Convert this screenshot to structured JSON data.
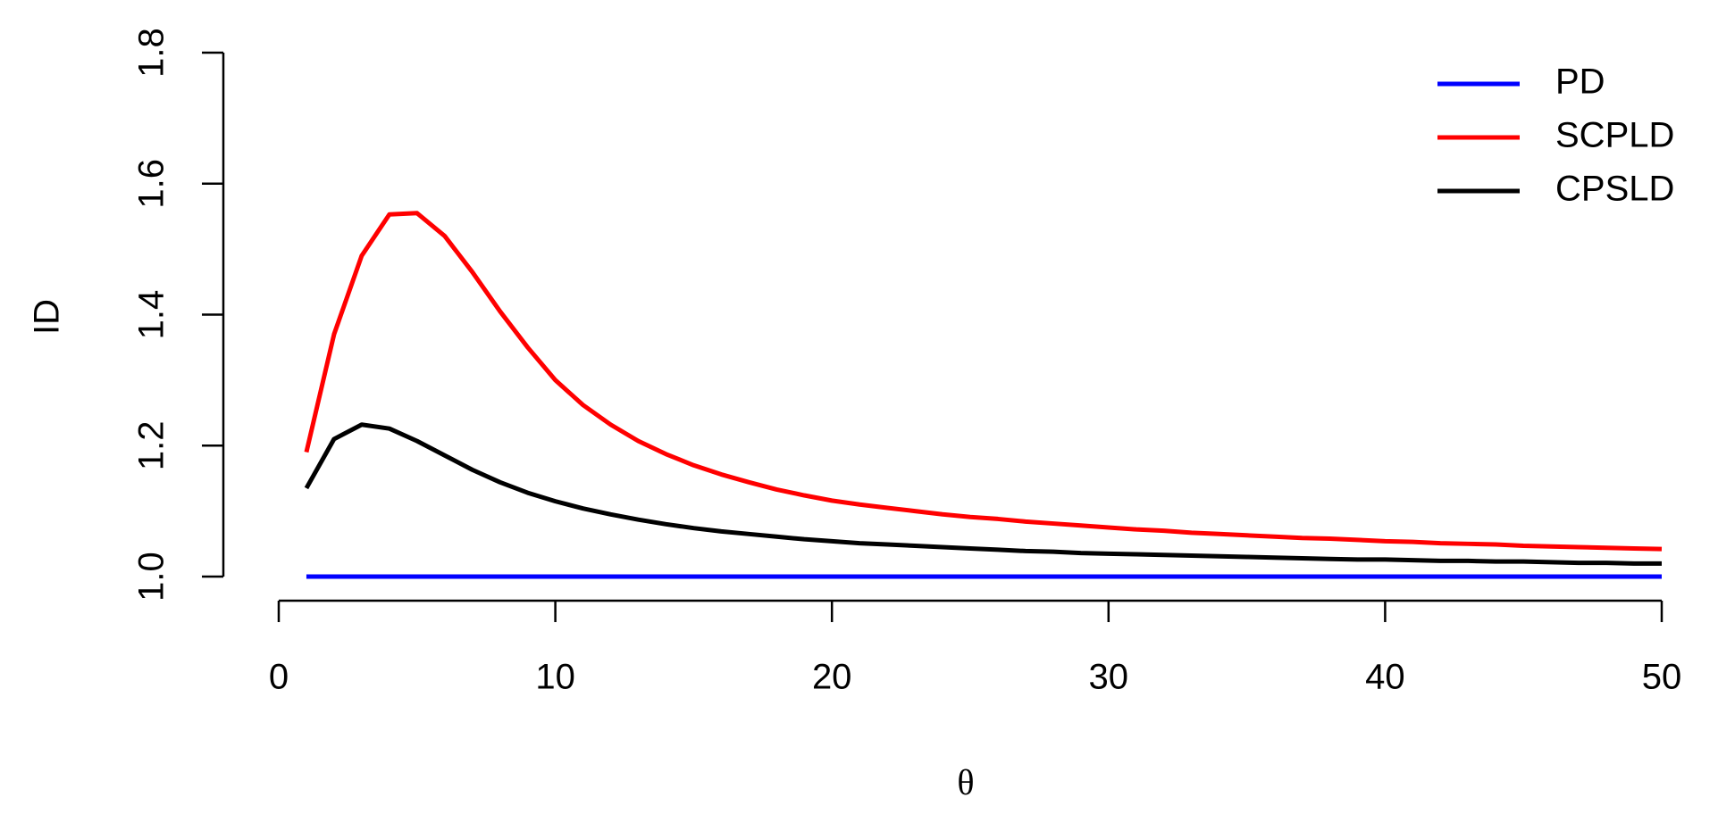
{
  "chart_data": {
    "type": "line",
    "xlabel": "θ",
    "ylabel": "ID",
    "x": [
      1,
      2,
      3,
      4,
      5,
      6,
      7,
      8,
      9,
      10,
      11,
      12,
      13,
      14,
      15,
      16,
      17,
      18,
      19,
      20,
      21,
      22,
      23,
      24,
      25,
      26,
      27,
      28,
      29,
      30,
      31,
      32,
      33,
      34,
      35,
      36,
      37,
      38,
      39,
      40,
      41,
      42,
      43,
      44,
      45,
      46,
      47,
      48,
      49,
      50
    ],
    "series": [
      {
        "name": "PD",
        "color": "#0000ff",
        "values": [
          1,
          1,
          1,
          1,
          1,
          1,
          1,
          1,
          1,
          1,
          1,
          1,
          1,
          1,
          1,
          1,
          1,
          1,
          1,
          1,
          1,
          1,
          1,
          1,
          1,
          1,
          1,
          1,
          1,
          1,
          1,
          1,
          1,
          1,
          1,
          1,
          1,
          1,
          1,
          1,
          1,
          1,
          1,
          1,
          1,
          1,
          1,
          1,
          1,
          1
        ]
      },
      {
        "name": "SCPLD",
        "color": "#ff0000",
        "values": [
          1.19,
          1.37,
          1.49,
          1.553,
          1.555,
          1.52,
          1.465,
          1.405,
          1.35,
          1.3,
          1.262,
          1.232,
          1.207,
          1.187,
          1.17,
          1.156,
          1.144,
          1.133,
          1.124,
          1.116,
          1.11,
          1.105,
          1.1,
          1.095,
          1.091,
          1.088,
          1.084,
          1.081,
          1.078,
          1.075,
          1.072,
          1.07,
          1.067,
          1.065,
          1.063,
          1.061,
          1.059,
          1.058,
          1.056,
          1.054,
          1.053,
          1.051,
          1.05,
          1.049,
          1.047,
          1.046,
          1.045,
          1.044,
          1.043,
          1.042
        ]
      },
      {
        "name": "CPSLD",
        "color": "#000000",
        "values": [
          1.135,
          1.21,
          1.232,
          1.226,
          1.207,
          1.185,
          1.163,
          1.144,
          1.128,
          1.115,
          1.104,
          1.095,
          1.087,
          1.08,
          1.074,
          1.069,
          1.065,
          1.061,
          1.057,
          1.054,
          1.051,
          1.049,
          1.047,
          1.045,
          1.043,
          1.041,
          1.039,
          1.038,
          1.036,
          1.035,
          1.034,
          1.033,
          1.032,
          1.031,
          1.03,
          1.029,
          1.028,
          1.027,
          1.026,
          1.026,
          1.025,
          1.024,
          1.024,
          1.023,
          1.023,
          1.022,
          1.021,
          1.021,
          1.02,
          1.02
        ]
      }
    ],
    "xlim": [
      0,
      50
    ],
    "xticks": [
      0,
      10,
      20,
      30,
      40,
      50
    ],
    "ylim": [
      1,
      1.8
    ],
    "yticks": [
      {
        "value": 1,
        "label": "1.0"
      },
      1.2,
      1.4,
      1.6,
      1.8
    ],
    "legend": "top-right",
    "grid": false
  }
}
